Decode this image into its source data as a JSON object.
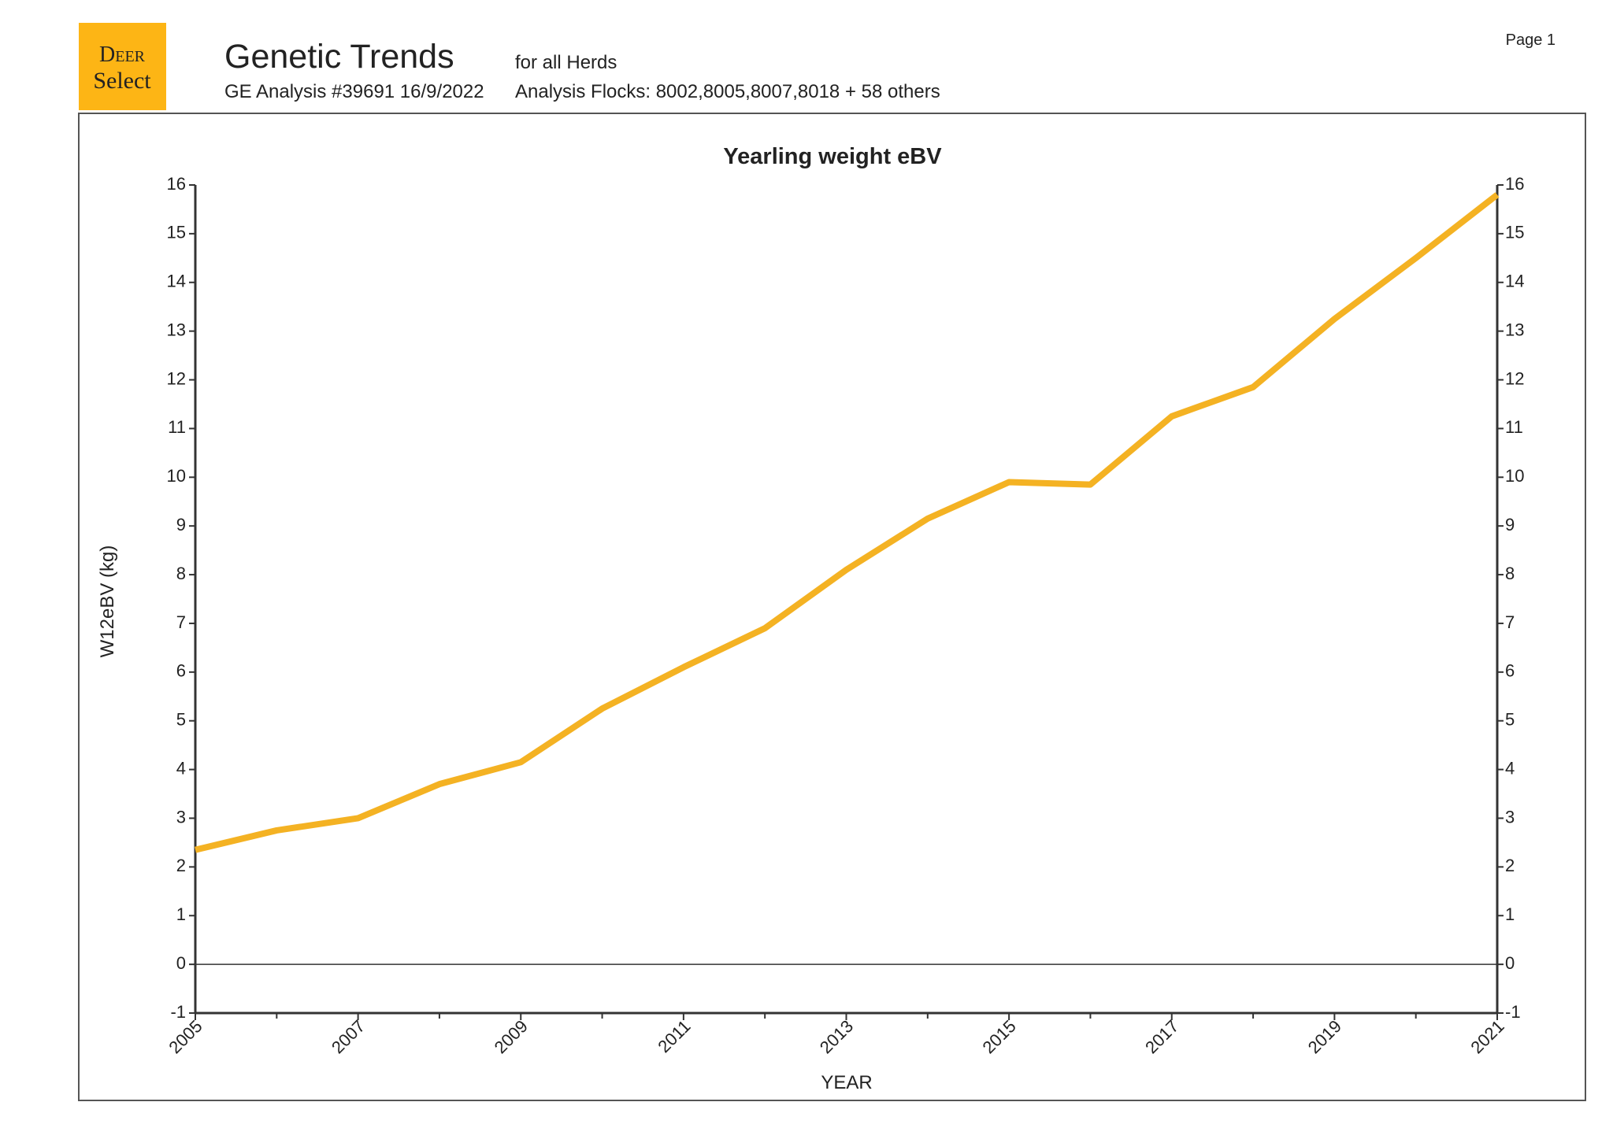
{
  "header": {
    "logo_line1": "Deer",
    "logo_line2": "Select",
    "title": "Genetic Trends",
    "scope": "for all Herds",
    "analysis": "GE Analysis #39691 16/9/2022",
    "flocks": "Analysis Flocks: 8002,8005,8007,8018 + 58 others",
    "page": "Page 1"
  },
  "chart_data": {
    "type": "line",
    "title": "Yearling weight eBV",
    "xlabel": "YEAR",
    "ylabel": "W12eBV (kg)",
    "x": [
      2005,
      2006,
      2007,
      2008,
      2009,
      2010,
      2011,
      2012,
      2013,
      2014,
      2015,
      2016,
      2017,
      2018,
      2019,
      2020,
      2021
    ],
    "series": [
      {
        "name": "Yearling weight eBV",
        "color": "#f4b223",
        "values": [
          2.35,
          2.75,
          3.0,
          3.7,
          4.15,
          5.25,
          6.1,
          6.9,
          8.1,
          9.15,
          9.9,
          9.85,
          11.25,
          11.85,
          13.25,
          14.5,
          15.8
        ]
      }
    ],
    "xlim": [
      2005,
      2021
    ],
    "xticks": [
      2005,
      2007,
      2009,
      2011,
      2013,
      2015,
      2017,
      2019,
      2021
    ],
    "xminor_ticks": [
      2006,
      2008,
      2010,
      2012,
      2014,
      2016,
      2018,
      2020
    ],
    "ylim": [
      -1,
      16
    ],
    "yticks": [
      -1,
      0,
      1,
      2,
      3,
      4,
      5,
      6,
      7,
      8,
      9,
      10,
      11,
      12,
      13,
      14,
      15,
      16
    ],
    "y2lim": [
      -1,
      16
    ],
    "y2ticks": [
      -1,
      0,
      1,
      2,
      3,
      4,
      5,
      6,
      7,
      8,
      9,
      10,
      11,
      12,
      13,
      14,
      15,
      16
    ]
  }
}
